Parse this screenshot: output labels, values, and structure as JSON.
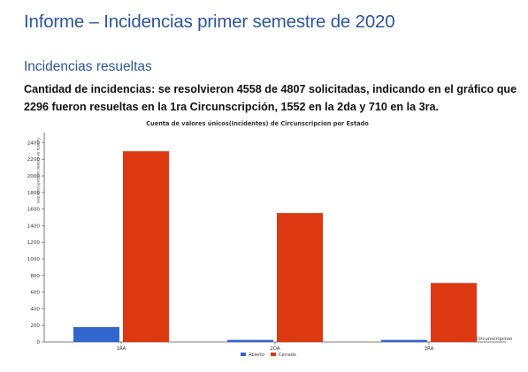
{
  "document": {
    "title": "Informe – Incidencias primer semestre de 2020",
    "section_heading": "Incidencias resueltas",
    "paragraph_lines": [
      "Cantidad de incidencias: se resolvieron 4558 de 4807 solicitadas, indicando en el gráfico que",
      "2296 fueron resueltas en la 1ra Circunscripción, 1552 en la 2da y 710 en la 3ra."
    ]
  },
  "chart_data": {
    "type": "bar",
    "title": "Cuenta de valores únicos(Incidentes) de Circunscripcion por Estado",
    "xlabel": "Circunscripcion",
    "ylabel": "Cuenta de valores únicos(Incidentes)",
    "categories": [
      "1RA",
      "2DA",
      "3RA"
    ],
    "series": [
      {
        "name": "Abierto",
        "color": "#3366cc",
        "values": [
          180,
          25,
          25
        ]
      },
      {
        "name": "Cerrado",
        "color": "#dc3912",
        "values": [
          2296,
          1552,
          710
        ]
      }
    ],
    "ylim": [
      0,
      2500
    ],
    "yticks": [
      0,
      200,
      400,
      600,
      800,
      1000,
      1200,
      1400,
      1600,
      1800,
      2000,
      2200,
      2400
    ],
    "grid": false,
    "legend_position": "bottom"
  }
}
